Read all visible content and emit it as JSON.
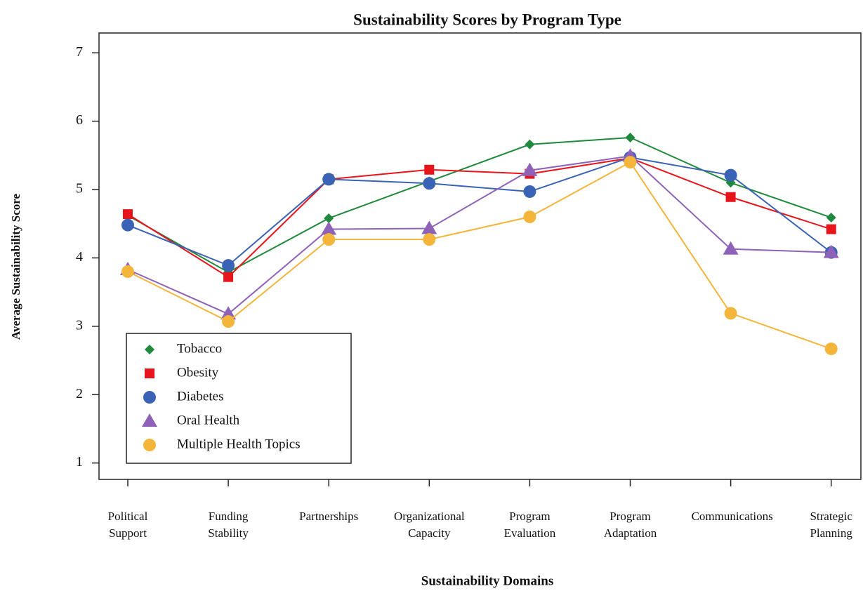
{
  "chart_data": {
    "type": "line",
    "title": "Sustainability Scores by Program Type",
    "x_label": "Sustainability Domains",
    "y_label": "Average Sustainability Score",
    "categories": [
      "Political Support",
      "Funding Stability",
      "Partnerships",
      "Organizational Capacity",
      "Program Evaluation",
      "Program Adaptation",
      "Communications",
      "Strategic Planning"
    ],
    "series": [
      {
        "name": "Tobacco",
        "color": "#1f8a3c",
        "marker": "diamond",
        "values": [
          4.62,
          3.79,
          4.58,
          5.12,
          5.66,
          5.76,
          5.1,
          4.59
        ]
      },
      {
        "name": "Obesity",
        "color": "#e8141c",
        "marker": "square",
        "values": [
          4.64,
          3.72,
          5.15,
          5.29,
          5.23,
          5.46,
          4.89,
          4.42
        ]
      },
      {
        "name": "Diabetes",
        "color": "#3a62b5",
        "marker": "circle",
        "values": [
          4.48,
          3.89,
          5.15,
          5.09,
          4.97,
          5.47,
          5.21,
          4.08
        ]
      },
      {
        "name": "Oral Health",
        "color": "#8e62b8",
        "marker": "triangle",
        "values": [
          3.83,
          3.18,
          4.42,
          4.43,
          5.28,
          5.49,
          4.13,
          4.08
        ]
      },
      {
        "name": "Multiple Health Topics",
        "color": "#f3b53a",
        "marker": "circle",
        "values": [
          3.8,
          3.07,
          4.27,
          4.27,
          4.6,
          5.4,
          3.19,
          2.67
        ]
      }
    ],
    "ylim": [
      0.76,
      7.29
    ],
    "yticks": [
      1,
      2,
      3,
      4,
      5,
      6,
      7
    ],
    "legend": "lower left"
  }
}
